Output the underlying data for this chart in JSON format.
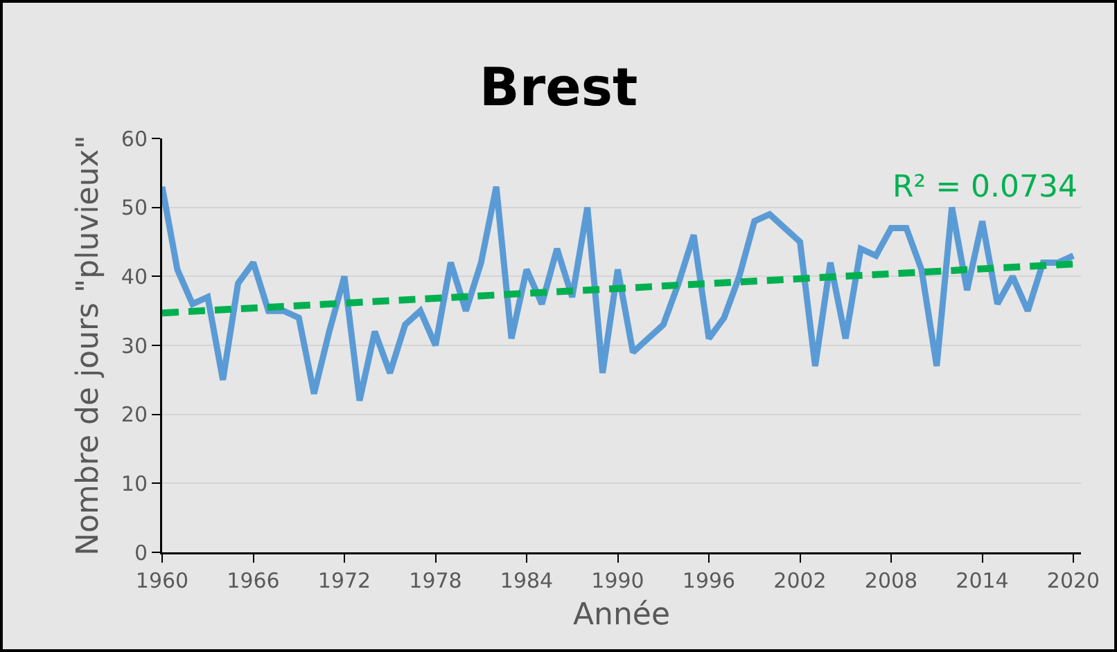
{
  "chart_data": {
    "type": "line",
    "title": "Brest",
    "xlabel": "Année",
    "ylabel": "Nombre de jours \"pluvieux\"",
    "x": [
      1960,
      1961,
      1962,
      1963,
      1964,
      1965,
      1966,
      1967,
      1968,
      1969,
      1970,
      1971,
      1972,
      1973,
      1974,
      1975,
      1976,
      1977,
      1978,
      1979,
      1980,
      1981,
      1982,
      1983,
      1984,
      1985,
      1986,
      1987,
      1988,
      1989,
      1990,
      1991,
      1992,
      1993,
      1994,
      1995,
      1996,
      1997,
      1998,
      1999,
      2000,
      2001,
      2002,
      2003,
      2004,
      2005,
      2006,
      2007,
      2008,
      2009,
      2010,
      2011,
      2012,
      2013,
      2014,
      2015,
      2016,
      2017,
      2018,
      2019,
      2020
    ],
    "series": [
      {
        "color": "#5b9bd5",
        "values": [
          53,
          41,
          36,
          37,
          25,
          39,
          42,
          35,
          35,
          34,
          23,
          32,
          40,
          22,
          32,
          26,
          33,
          35,
          30,
          42,
          35,
          42,
          53,
          31,
          41,
          36,
          44,
          37,
          50,
          26,
          41,
          29,
          31,
          33,
          39,
          46,
          31,
          34,
          40,
          48,
          49,
          47,
          45,
          27,
          42,
          31,
          44,
          43,
          47,
          47,
          41,
          27,
          50,
          38,
          48,
          36,
          40,
          35,
          42,
          42,
          43
        ]
      },
      {
        "type": "line",
        "color": "#00b050",
        "line_style": "dashed",
        "x": [
          1960,
          2020
        ],
        "values": [
          34.7,
          41.8
        ]
      }
    ],
    "annotations": [
      "R² = 0.0734"
    ],
    "xlim": [
      1960,
      2020.5
    ],
    "xticks": [
      1960,
      1966,
      1972,
      1978,
      1984,
      1990,
      1996,
      2002,
      2008,
      2014,
      2020
    ],
    "ylim": [
      0,
      60
    ],
    "yticks": [
      0,
      10,
      20,
      30,
      40,
      50,
      60
    ],
    "grid": "y"
  }
}
